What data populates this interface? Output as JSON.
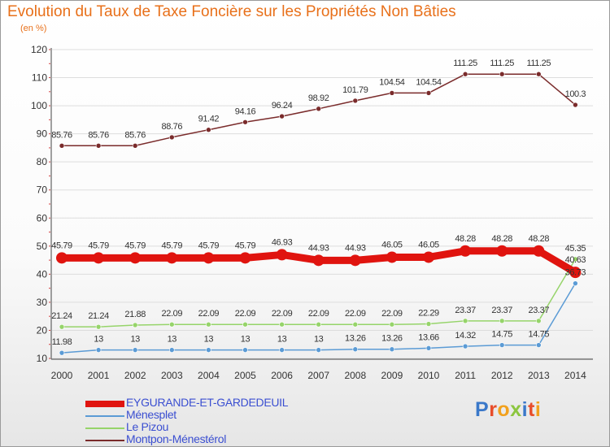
{
  "title": "Evolution du Taux de Taxe Foncière sur les Propriétés Non Bâties",
  "subtitle": "(en %)",
  "chart_data": {
    "type": "line",
    "title": "Evolution du Taux de Taxe Foncière sur les Propriétés Non Bâties",
    "ylabel": "(en %)",
    "xlabel": "",
    "ylim": [
      10,
      120
    ],
    "yticks": [
      10,
      20,
      30,
      40,
      50,
      60,
      70,
      80,
      90,
      100,
      110,
      120
    ],
    "categories": [
      "2000",
      "2001",
      "2002",
      "2003",
      "2004",
      "2005",
      "2006",
      "2007",
      "2008",
      "2009",
      "2010",
      "2011",
      "2012",
      "2013",
      "2014"
    ],
    "series": [
      {
        "name": "Montpon-Ménestérol",
        "color": "#7a2b2b",
        "values": [
          85.76,
          85.76,
          85.76,
          88.76,
          91.42,
          94.16,
          96.24,
          98.92,
          101.79,
          104.54,
          104.54,
          111.25,
          111.25,
          111.25,
          100.3
        ],
        "labels": [
          "85.76",
          "85.76",
          "85.76",
          "88.76",
          "91.42",
          "94.16",
          "96.24",
          "98.92",
          "101.79",
          "104.54",
          "104.54",
          "111.25",
          "111.25",
          "111.25",
          "100.3"
        ]
      },
      {
        "name": "EYGURANDE-ET-GARDEDEUIL",
        "color": "#e0140f",
        "values": [
          45.79,
          45.79,
          45.79,
          45.79,
          45.79,
          45.79,
          46.93,
          44.93,
          44.93,
          46.05,
          46.05,
          48.28,
          48.28,
          48.28,
          40.63
        ],
        "labels": [
          "45.79",
          "45.79",
          "45.79",
          "45.79",
          "45.79",
          "45.79",
          "46.93",
          "44.93",
          "44.93",
          "46.05",
          "46.05",
          "48.28",
          "48.28",
          "48.28",
          "40.63"
        ]
      },
      {
        "name": "Le Pizou",
        "color": "#96d46a",
        "values": [
          21.24,
          21.24,
          21.88,
          22.09,
          22.09,
          22.09,
          22.09,
          22.09,
          22.09,
          22.09,
          22.29,
          23.37,
          23.37,
          23.37,
          45.35
        ],
        "labels": [
          "21.24",
          "21.24",
          "21.88",
          "22.09",
          "22.09",
          "22.09",
          "22.09",
          "22.09",
          "22.09",
          "22.09",
          "22.29",
          "23.37",
          "23.37",
          "23.37",
          "45.35"
        ]
      },
      {
        "name": "Ménesplet",
        "color": "#5b9bd5",
        "values": [
          11.98,
          13,
          13,
          13,
          13,
          13,
          13,
          13,
          13.26,
          13.26,
          13.66,
          14.32,
          14.75,
          14.75,
          36.73
        ],
        "labels": [
          "11.98",
          "13",
          "13",
          "13",
          "13",
          "13",
          "13",
          "13",
          "13.26",
          "13.26",
          "13.66",
          "14.32",
          "14.75",
          "14.75",
          "36.73"
        ]
      }
    ]
  },
  "legend": [
    {
      "name": "EYGURANDE-ET-GARDEDEUIL",
      "color": "#e0140f"
    },
    {
      "name": "Ménesplet",
      "color": "#5b9bd5"
    },
    {
      "name": "Le Pizou",
      "color": "#96d46a"
    },
    {
      "name": "Montpon-Ménestérol",
      "color": "#7a2b2b"
    }
  ],
  "logo": {
    "text": "Proxiti",
    "letters": [
      {
        "ch": "P",
        "color": "#3a78c9"
      },
      {
        "ch": "r",
        "color": "#e84d2a"
      },
      {
        "ch": "o",
        "color": "#f2a11d"
      },
      {
        "ch": "x",
        "color": "#8cc63f"
      },
      {
        "ch": "i",
        "color": "#3a78c9"
      },
      {
        "ch": "t",
        "color": "#e84d2a"
      },
      {
        "ch": "i",
        "color": "#f2a11d"
      }
    ]
  }
}
